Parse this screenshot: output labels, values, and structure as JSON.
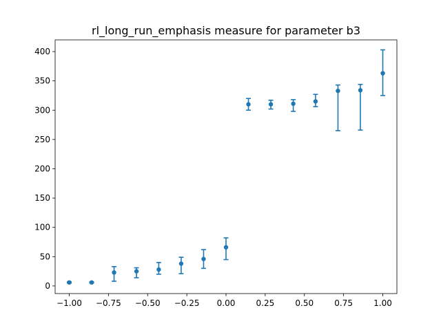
{
  "chart_data": {
    "type": "scatter",
    "title": "rl_long_run_emphasis measure for parameter b3",
    "xlabel": "",
    "ylabel": "",
    "xlim": [
      -1.09,
      1.09
    ],
    "ylim": [
      -13,
      420
    ],
    "grid": false,
    "color": "#1f77b4",
    "x_ticks": [
      -1.0,
      -0.75,
      -0.5,
      -0.25,
      0.0,
      0.25,
      0.5,
      0.75,
      1.0
    ],
    "x_tick_labels": [
      "−1.00",
      "−0.75",
      "−0.50",
      "−0.25",
      "0.00",
      "0.25",
      "0.50",
      "0.75",
      "1.00"
    ],
    "y_ticks": [
      0,
      50,
      100,
      150,
      200,
      250,
      300,
      350,
      400
    ],
    "y_tick_labels": [
      "0",
      "50",
      "100",
      "150",
      "200",
      "250",
      "300",
      "350",
      "400"
    ],
    "series": [
      {
        "points": [
          {
            "x": -1.0,
            "y": 6,
            "ylow": 5,
            "yhigh": 7
          },
          {
            "x": -0.857,
            "y": 6,
            "ylow": 5,
            "yhigh": 7
          },
          {
            "x": -0.714,
            "y": 23,
            "ylow": 8,
            "yhigh": 33
          },
          {
            "x": -0.571,
            "y": 25,
            "ylow": 14,
            "yhigh": 31
          },
          {
            "x": -0.429,
            "y": 28,
            "ylow": 20,
            "yhigh": 40
          },
          {
            "x": -0.286,
            "y": 38,
            "ylow": 21,
            "yhigh": 49
          },
          {
            "x": -0.143,
            "y": 46,
            "ylow": 30,
            "yhigh": 62
          },
          {
            "x": 0.0,
            "y": 66,
            "ylow": 45,
            "yhigh": 82
          },
          {
            "x": 0.143,
            "y": 310,
            "ylow": 300,
            "yhigh": 320
          },
          {
            "x": 0.286,
            "y": 310,
            "ylow": 302,
            "yhigh": 317
          },
          {
            "x": 0.429,
            "y": 311,
            "ylow": 298,
            "yhigh": 318
          },
          {
            "x": 0.571,
            "y": 315,
            "ylow": 306,
            "yhigh": 327
          },
          {
            "x": 0.714,
            "y": 333,
            "ylow": 265,
            "yhigh": 343
          },
          {
            "x": 0.857,
            "y": 334,
            "ylow": 266,
            "yhigh": 344
          },
          {
            "x": 1.0,
            "y": 363,
            "ylow": 325,
            "yhigh": 403
          }
        ]
      }
    ]
  }
}
